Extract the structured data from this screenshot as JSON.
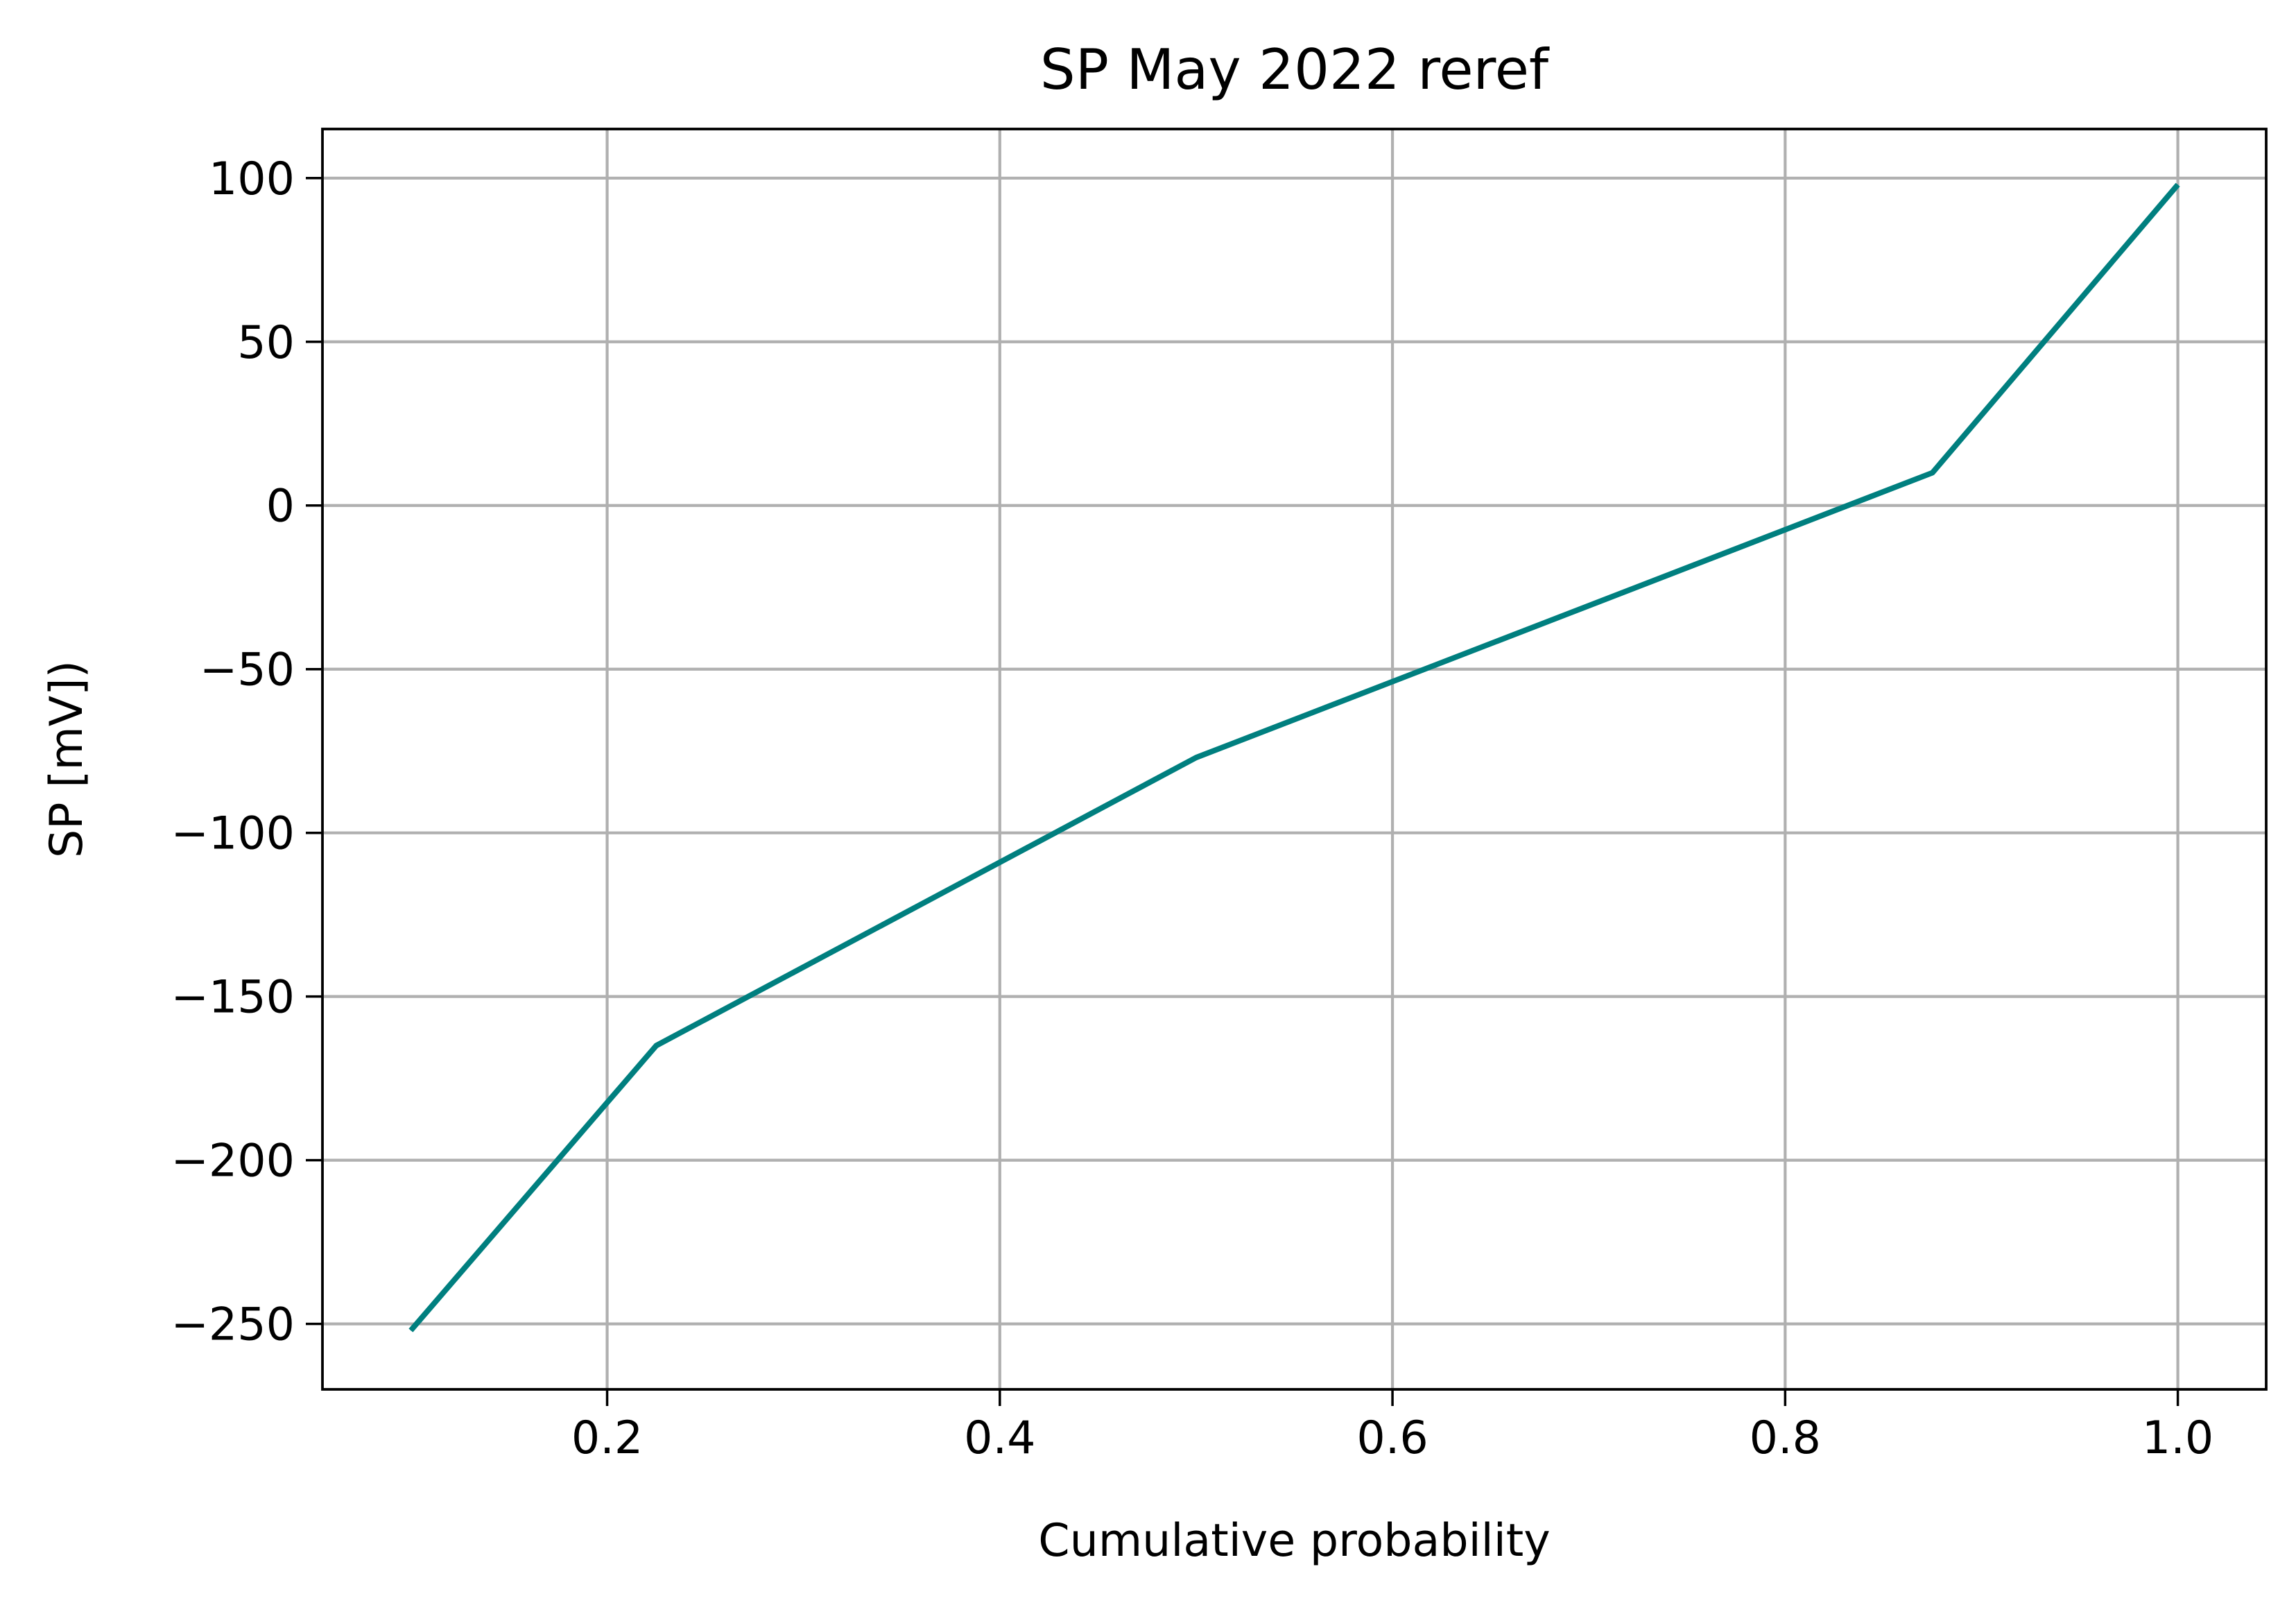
{
  "chart_data": {
    "type": "line",
    "title": "SP May 2022 reref",
    "xlabel": "Cumulative probability",
    "ylabel": "SP [mV])",
    "xlim": [
      0.055,
      1.045
    ],
    "ylim": [
      -270,
      115
    ],
    "xticks": [
      0.2,
      0.4,
      0.6,
      0.8,
      1.0
    ],
    "xtick_labels": [
      "0.2",
      "0.4",
      "0.6",
      "0.8",
      "1.0"
    ],
    "yticks": [
      100,
      50,
      0,
      -50,
      -100,
      -150,
      -200,
      -250
    ],
    "ytick_labels": [
      "100",
      "50",
      "0",
      "−50",
      "−100",
      "−150",
      "−200",
      "−250"
    ],
    "grid": true,
    "series": [
      {
        "color": "#007f7f",
        "x": [
          0.1,
          0.225,
          0.5,
          0.875,
          1.0
        ],
        "y": [
          -252,
          -165,
          -77,
          10,
          98
        ]
      }
    ]
  }
}
